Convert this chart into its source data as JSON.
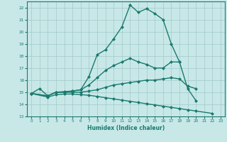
{
  "line1": {
    "x": [
      0,
      1,
      2,
      3,
      4,
      5,
      6,
      7,
      8,
      9,
      10,
      11,
      12,
      13,
      14,
      15,
      16,
      17,
      18,
      19,
      20
    ],
    "y": [
      14.9,
      15.3,
      14.7,
      15.0,
      15.05,
      15.1,
      15.2,
      16.3,
      18.1,
      18.5,
      19.4,
      20.4,
      22.2,
      21.6,
      21.9,
      21.5,
      21.0,
      19.0,
      17.5,
      15.3,
      14.3
    ]
  },
  "line2": {
    "x": [
      0,
      2,
      3,
      4,
      5,
      6,
      7,
      8,
      9,
      10,
      11,
      12,
      13,
      14,
      15,
      16,
      17,
      18
    ],
    "y": [
      14.9,
      14.7,
      15.0,
      15.0,
      15.1,
      15.2,
      15.6,
      16.2,
      16.8,
      17.2,
      17.5,
      17.8,
      17.5,
      17.3,
      17.0,
      17.0,
      17.5,
      17.5
    ]
  },
  "line3": {
    "x": [
      0,
      2,
      3,
      4,
      5,
      6,
      7,
      8,
      9,
      10,
      11,
      12,
      13,
      14,
      15,
      16,
      17,
      18,
      19,
      20
    ],
    "y": [
      14.9,
      14.7,
      15.0,
      15.0,
      15.0,
      15.0,
      15.1,
      15.2,
      15.4,
      15.6,
      15.7,
      15.8,
      15.9,
      16.0,
      16.0,
      16.1,
      16.2,
      16.1,
      15.5,
      15.3
    ]
  },
  "line4": {
    "x": [
      0,
      2,
      3,
      4,
      5,
      6,
      7,
      8,
      9,
      10,
      11,
      12,
      13,
      14,
      15,
      16,
      17,
      18,
      19,
      20,
      22
    ],
    "y": [
      14.9,
      14.6,
      14.8,
      14.85,
      14.85,
      14.8,
      14.75,
      14.65,
      14.55,
      14.45,
      14.35,
      14.25,
      14.15,
      14.05,
      13.95,
      13.85,
      13.75,
      13.65,
      13.55,
      13.45,
      13.25
    ]
  },
  "color": "#1a7a6e",
  "bg_color": "#c8e8e8",
  "grid_color": "#a0c8c8",
  "xlim": [
    -0.5,
    23.5
  ],
  "ylim": [
    13,
    22.5
  ],
  "yticks": [
    13,
    14,
    15,
    16,
    17,
    18,
    19,
    20,
    21,
    22
  ],
  "xticks": [
    0,
    1,
    2,
    3,
    4,
    5,
    6,
    7,
    8,
    9,
    10,
    11,
    12,
    13,
    14,
    15,
    16,
    17,
    18,
    19,
    20,
    21,
    22,
    23
  ],
  "xlabel": "Humidex (Indice chaleur)",
  "marker": "D",
  "markersize": 2,
  "linewidth": 1.0
}
